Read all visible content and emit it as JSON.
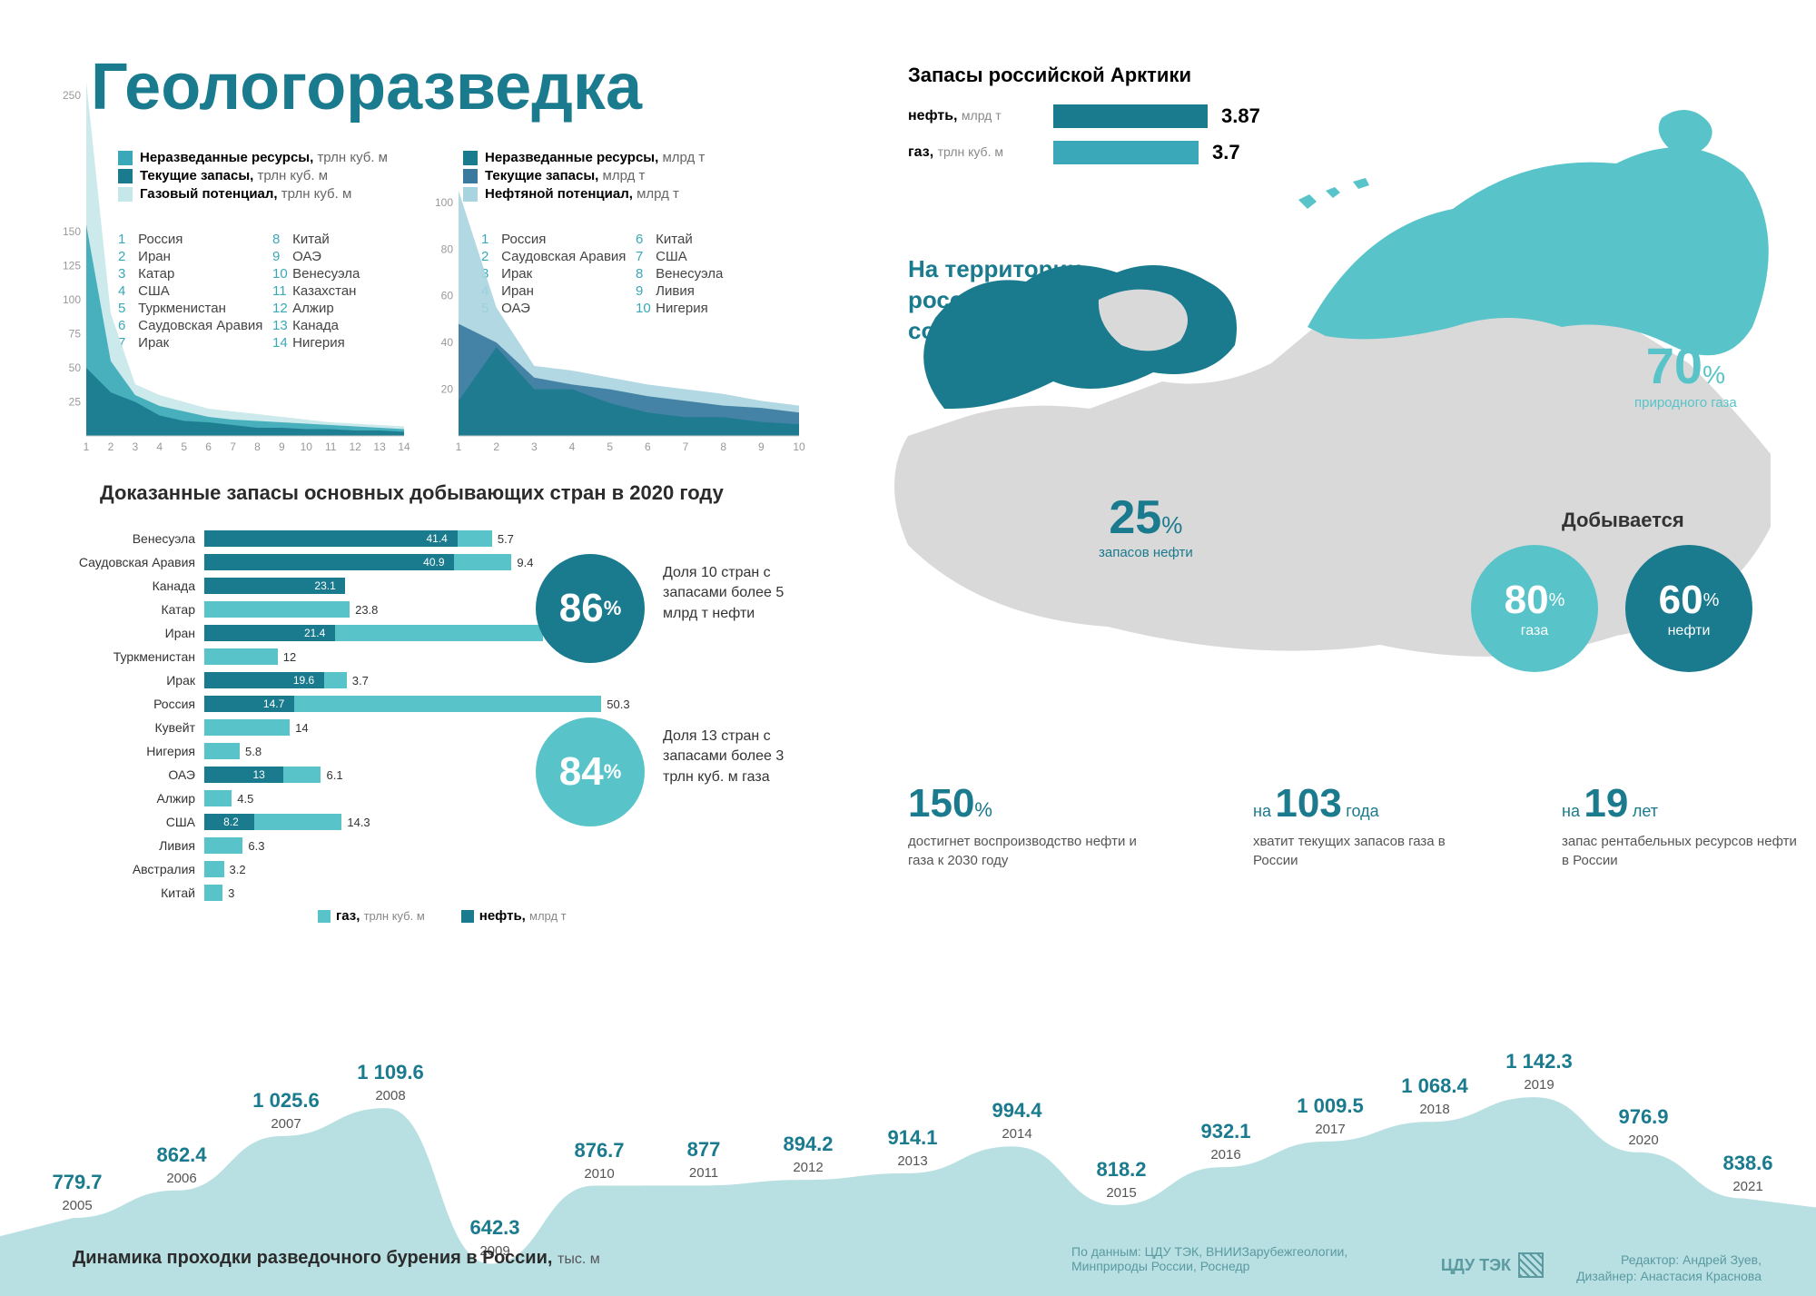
{
  "title": "Геологоразведка",
  "colors": {
    "teal_dark": "#1a7a8e",
    "teal_mid": "#3aa8b8",
    "teal_light": "#8fd4d9",
    "teal_pale": "#c6e7e9",
    "blue_dark": "#2b5f8f",
    "grey_map": "#d9d9d9",
    "text": "#2b2b2b"
  },
  "gas_legend": [
    {
      "label": "Неразведанные ресурсы,",
      "unit": "трлн куб. м",
      "color": "#3aa8b8"
    },
    {
      "label": "Текущие запасы,",
      "unit": "трлн куб. м",
      "color": "#1a7a8e"
    },
    {
      "label": "Газовый потенциал,",
      "unit": "трлн куб. м",
      "color": "#c6e7e9"
    }
  ],
  "oil_legend": [
    {
      "label": "Неразведанные ресурсы,",
      "unit": "млрд т",
      "color": "#1a7a8e"
    },
    {
      "label": "Текущие запасы,",
      "unit": "млрд т",
      "color": "#3a7a9e"
    },
    {
      "label": "Нефтяной потенциал,",
      "unit": "млрд т",
      "color": "#a8d4e0"
    }
  ],
  "gas_countries_1": [
    {
      "n": 1,
      "name": "Россия"
    },
    {
      "n": 2,
      "name": "Иран"
    },
    {
      "n": 3,
      "name": "Катар"
    },
    {
      "n": 4,
      "name": "США"
    },
    {
      "n": 5,
      "name": "Туркменистан"
    },
    {
      "n": 6,
      "name": "Саудовская Аравия"
    },
    {
      "n": 7,
      "name": "Ирак"
    }
  ],
  "gas_countries_2": [
    {
      "n": 8,
      "name": "Китай"
    },
    {
      "n": 9,
      "name": "ОАЭ"
    },
    {
      "n": 10,
      "name": "Венесуэла"
    },
    {
      "n": 11,
      "name": "Казахстан"
    },
    {
      "n": 12,
      "name": "Алжир"
    },
    {
      "n": 13,
      "name": "Канада"
    },
    {
      "n": 14,
      "name": "Нигерия"
    }
  ],
  "oil_countries_1": [
    {
      "n": 1,
      "name": "Россия"
    },
    {
      "n": 2,
      "name": "Саудовская Аравия"
    },
    {
      "n": 3,
      "name": "Ирак"
    },
    {
      "n": 4,
      "name": "Иран"
    },
    {
      "n": 5,
      "name": "ОАЭ"
    }
  ],
  "oil_countries_2": [
    {
      "n": 6,
      "name": "Китай"
    },
    {
      "n": 7,
      "name": "США"
    },
    {
      "n": 8,
      "name": "Венесуэла"
    },
    {
      "n": 9,
      "name": "Ливия"
    },
    {
      "n": 10,
      "name": "Нигерия"
    }
  ],
  "gas_chart": {
    "type": "area",
    "yticks": [
      25,
      50,
      75,
      100,
      125,
      150,
      250
    ],
    "xticks": [
      1,
      2,
      3,
      4,
      5,
      6,
      7,
      8,
      9,
      10,
      11,
      12,
      13,
      14
    ],
    "ylim": [
      0,
      260
    ],
    "xlim": [
      1,
      14
    ],
    "series": [
      {
        "color": "#c6e7e9",
        "values": [
          260,
          90,
          38,
          30,
          25,
          20,
          18,
          16,
          14,
          12,
          10,
          9,
          8,
          7
        ]
      },
      {
        "color": "#3aa8b8",
        "values": [
          155,
          55,
          30,
          22,
          18,
          14,
          12,
          11,
          10,
          9,
          8,
          7,
          6,
          5
        ]
      },
      {
        "color": "#1a7a8e",
        "values": [
          50,
          32,
          25,
          15,
          11,
          10,
          8,
          6,
          6,
          5,
          5,
          4,
          4,
          3
        ]
      }
    ]
  },
  "oil_chart": {
    "type": "area",
    "yticks": [
      20,
      40,
      60,
      80,
      100
    ],
    "xticks": [
      1,
      2,
      3,
      4,
      5,
      6,
      7,
      8,
      9,
      10
    ],
    "ylim": [
      0,
      105
    ],
    "xlim": [
      1,
      10
    ],
    "series": [
      {
        "color": "#a8d4e0",
        "values": [
          105,
          55,
          30,
          28,
          25,
          22,
          20,
          18,
          15,
          13
        ]
      },
      {
        "color": "#3a7a9e",
        "values": [
          48,
          40,
          25,
          22,
          20,
          17,
          15,
          13,
          12,
          10
        ]
      },
      {
        "color": "#1a7a8e",
        "values": [
          15,
          38,
          20,
          20,
          14,
          10,
          8,
          8,
          6,
          5
        ]
      }
    ]
  },
  "reserves_title": "Доказанные запасы основных добывающих стран в 2020 году",
  "hbar": {
    "type": "bar",
    "max": 55,
    "legend": [
      {
        "label": "газ,",
        "unit": "трлн куб. м",
        "color": "#58c4c9"
      },
      {
        "label": "нефть,",
        "unit": "млрд т",
        "color": "#1a7a8e"
      }
    ],
    "rows": [
      {
        "name": "Венесуэла",
        "oil": 41.4,
        "gas": 5.7
      },
      {
        "name": "Саудовская Аравия",
        "oil": 40.9,
        "gas": 9.4
      },
      {
        "name": "Канада",
        "oil": 23.1,
        "gas": null
      },
      {
        "name": "Катар",
        "oil": null,
        "gas": 23.8
      },
      {
        "name": "Иран",
        "oil": 21.4,
        "gas": 34.0
      },
      {
        "name": "Туркменистан",
        "oil": null,
        "gas": 12.0
      },
      {
        "name": "Ирак",
        "oil": 19.6,
        "gas": 3.7
      },
      {
        "name": "Россия",
        "oil": 14.7,
        "gas": 50.3
      },
      {
        "name": "Кувейт",
        "oil": null,
        "gas": 14.0
      },
      {
        "name": "Нигерия",
        "oil": null,
        "gas": 5.8
      },
      {
        "name": "ОАЭ",
        "oil": 13.0,
        "gas": 6.1
      },
      {
        "name": "Алжир",
        "oil": null,
        "gas": 4.5
      },
      {
        "name": "США",
        "oil": 8.2,
        "gas": 14.3
      },
      {
        "name": "Ливия",
        "oil": null,
        "gas": 6.3
      },
      {
        "name": "Австралия",
        "oil": null,
        "gas": 3.2
      },
      {
        "name": "Китай",
        "oil": null,
        "gas": 3.0
      }
    ]
  },
  "circle1": {
    "value": "86",
    "pct": "%",
    "color": "#1a7a8e",
    "text": "Доля 10 стран с запасами более 5 млрд т нефти"
  },
  "circle2": {
    "value": "84",
    "pct": "%",
    "color": "#58c4c9",
    "text": "Доля 13 стран с запасами более 3 трлн куб. м газа"
  },
  "arctic_header": "Запасы российской Арктики",
  "arctic_rows": [
    {
      "label": "нефть,",
      "unit": "млрд т",
      "val": "3.87",
      "color": "#1a7a8e",
      "width": 170
    },
    {
      "label": "газ,",
      "unit": "трлн куб. м",
      "val": "3.7",
      "color": "#3aa8b8",
      "width": 160
    }
  ],
  "arctic_text": "На территории российской Арктики сосредоточено до",
  "map_oil": {
    "val": "25",
    "pct": "%",
    "sub": "запасов нефти",
    "color": "#1a7a8e"
  },
  "map_gas": {
    "val": "70",
    "pct": "%",
    "sub": "природного газа",
    "color": "#58c4c9"
  },
  "prod_header": "Добывается",
  "prod_gas": {
    "val": "80",
    "pct": "%",
    "sub": "газа",
    "color": "#58c4c9"
  },
  "prod_oil": {
    "val": "60",
    "pct": "%",
    "sub": "нефти",
    "color": "#1a7a8e"
  },
  "stat1": {
    "big": "150",
    "pct": "%",
    "desc": "достигнет воспроизводство нефти и газа к 2030 году"
  },
  "stat2": {
    "pre": "на",
    "big": "103",
    "suf": "года",
    "desc": "хватит текущих запасов газа в России"
  },
  "stat3": {
    "pre": "на",
    "big": "19",
    "suf": "лет",
    "desc": "запас рентабельных ресурсов нефти в России"
  },
  "timeline": {
    "type": "area",
    "title": "Динамика проходки разведочного бурения в России,",
    "unit": "тыс. м",
    "color": "#b8e0e3",
    "baseline": 600,
    "max": 1200,
    "points": [
      {
        "year": 2005,
        "val": 779.7
      },
      {
        "year": 2006,
        "val": 862.4
      },
      {
        "year": 2007,
        "val": 1025.6
      },
      {
        "year": 2008,
        "val": 1109.6
      },
      {
        "year": 2009,
        "val": 642.3
      },
      {
        "year": 2010,
        "val": 876.7
      },
      {
        "year": 2011,
        "val": 877
      },
      {
        "year": 2012,
        "val": 894.2
      },
      {
        "year": 2013,
        "val": 914.1
      },
      {
        "year": 2014,
        "val": 994.4
      },
      {
        "year": 2015,
        "val": 818.2
      },
      {
        "year": 2016,
        "val": 932.1
      },
      {
        "year": 2017,
        "val": 1009.5
      },
      {
        "year": 2018,
        "val": 1068.4
      },
      {
        "year": 2019,
        "val": 1142.3
      },
      {
        "year": 2020,
        "val": 976.9
      },
      {
        "year": 2021,
        "val": 838.6
      }
    ]
  },
  "footer": {
    "source": "По данным: ЦДУ ТЭК, ВНИИЗарубежгеологии, Минприроды России, Роснедр",
    "logo": "ЦДУ ТЭК",
    "editor": "Редактор: Андрей Зуев,",
    "designer": "Дизайнер: Анастасия Краснова"
  }
}
